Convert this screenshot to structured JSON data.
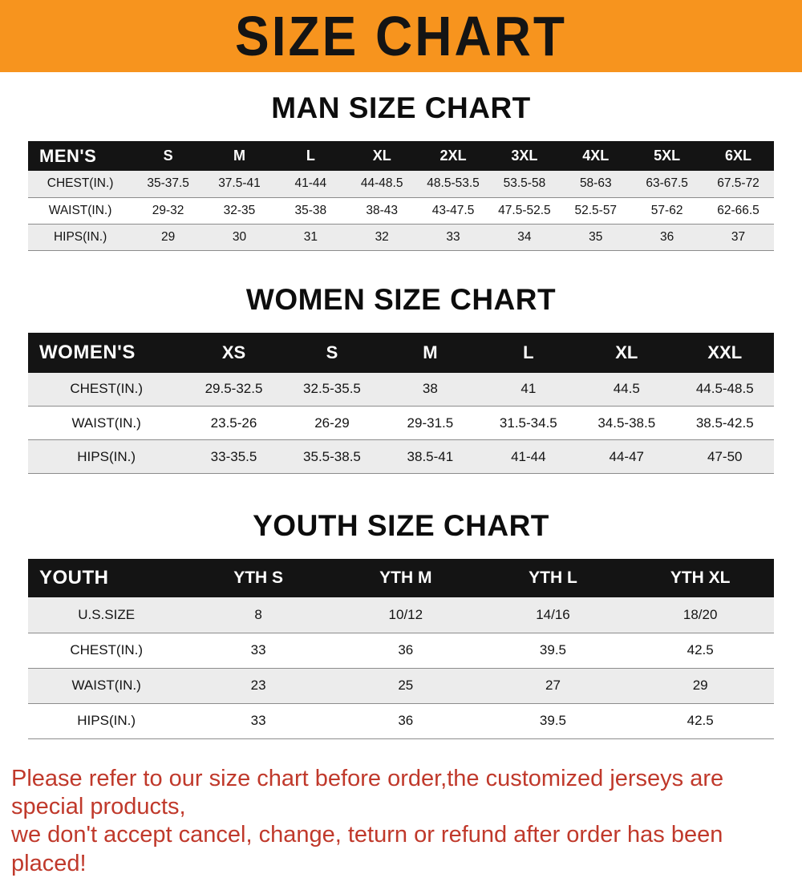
{
  "banner": {
    "title": "SIZE CHART",
    "bg_color": "#f7941e",
    "text_color": "#141414"
  },
  "sections": [
    {
      "heading": "MAN SIZE CHART",
      "table": {
        "header_label": "MEN'S",
        "columns": [
          "S",
          "M",
          "L",
          "XL",
          "2XL",
          "3XL",
          "4XL",
          "5XL",
          "6XL"
        ],
        "rows": [
          {
            "label": "CHEST(IN.)",
            "values": [
              "35-37.5",
              "37.5-41",
              "41-44",
              "44-48.5",
              "48.5-53.5",
              "53.5-58",
              "58-63",
              "63-67.5",
              "67.5-72"
            ]
          },
          {
            "label": "WAIST(IN.)",
            "values": [
              "29-32",
              "32-35",
              "35-38",
              "38-43",
              "43-47.5",
              "47.5-52.5",
              "52.5-57",
              "57-62",
              "62-66.5"
            ]
          },
          {
            "label": "HIPS(IN.)",
            "values": [
              "29",
              "30",
              "31",
              "32",
              "33",
              "34",
              "35",
              "36",
              "37"
            ]
          }
        ]
      }
    },
    {
      "heading": "WOMEN SIZE CHART",
      "table": {
        "header_label": "WOMEN'S",
        "columns": [
          "XS",
          "S",
          "M",
          "L",
          "XL",
          "XXL"
        ],
        "rows": [
          {
            "label": "CHEST(IN.)",
            "values": [
              "29.5-32.5",
              "32.5-35.5",
              "38",
              "41",
              "44.5",
              "44.5-48.5"
            ]
          },
          {
            "label": "WAIST(IN.)",
            "values": [
              "23.5-26",
              "26-29",
              "29-31.5",
              "31.5-34.5",
              "34.5-38.5",
              "38.5-42.5"
            ]
          },
          {
            "label": "HIPS(IN.)",
            "values": [
              "33-35.5",
              "35.5-38.5",
              "38.5-41",
              "41-44",
              "44-47",
              "47-50"
            ]
          }
        ]
      }
    },
    {
      "heading": "YOUTH SIZE CHART",
      "table": {
        "header_label": "YOUTH",
        "columns": [
          "YTH S",
          "YTH M",
          "YTH L",
          "YTH XL"
        ],
        "rows": [
          {
            "label": "U.S.SIZE",
            "values": [
              "8",
              "10/12",
              "14/16",
              "18/20"
            ]
          },
          {
            "label": "CHEST(IN.)",
            "values": [
              "33",
              "36",
              "39.5",
              "42.5"
            ]
          },
          {
            "label": "WAIST(IN.)",
            "values": [
              "23",
              "25",
              "27",
              "29"
            ]
          },
          {
            "label": "HIPS(IN.)",
            "values": [
              "33",
              "36",
              "39.5",
              "42.5"
            ]
          }
        ]
      }
    }
  ],
  "disclaimer": {
    "line1": "Please refer to our size chart before order,the customized jerseys are special products,",
    "line2": "we don't accept cancel, change, teturn or refund after order has been placed!",
    "color": "#c0392b"
  },
  "colors": {
    "accent_orange": "#f7941e",
    "table_header_black": "#141414",
    "row_shade_gray": "#ececec",
    "disclaimer_red": "#c0392b"
  }
}
